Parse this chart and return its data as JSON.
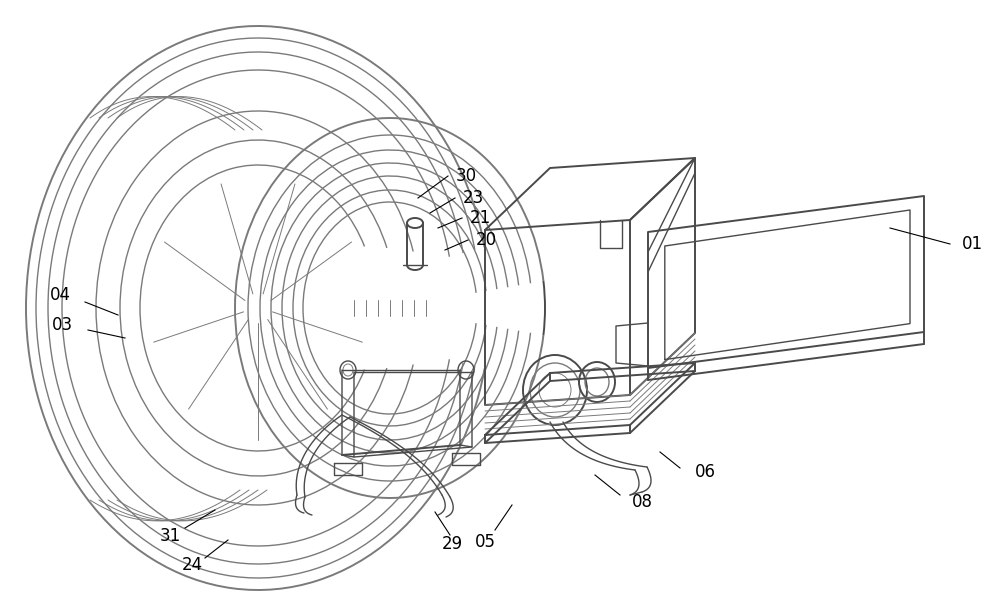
{
  "bg_color": "#ffffff",
  "lc": "#7a7a7a",
  "dc": "#4a4a4a",
  "figsize": [
    10.0,
    6.15
  ],
  "dpi": 100
}
